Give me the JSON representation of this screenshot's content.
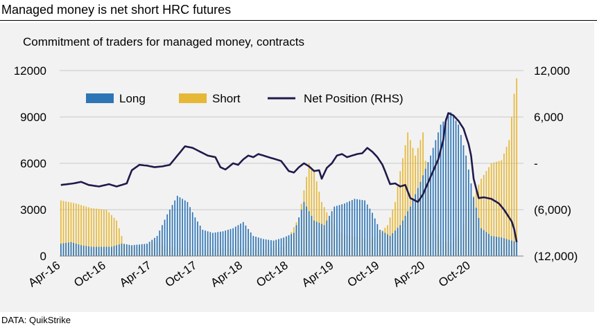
{
  "header": {
    "title": "Managed money is net short HRC futures",
    "source": "DATA: QuikStrike"
  },
  "chart_data": {
    "type": "bar",
    "subtitle": "Commitment of traders for managed money, contracts",
    "x_tick_labels": [
      "Apr-16",
      "Oct-16",
      "Apr-17",
      "Oct-17",
      "Apr-18",
      "Oct-18",
      "Apr-19",
      "Oct-19",
      "Apr-20",
      "Oct-20"
    ],
    "left_axis": {
      "ylim": [
        0,
        12000
      ],
      "tick_labels": [
        "0",
        "3000",
        "6000",
        "9000",
        "12000"
      ]
    },
    "right_axis": {
      "ylim": [
        -12000,
        12000
      ],
      "tick_labels": [
        "(12,000)",
        "(6,000)",
        "-",
        "6,000",
        "12,000"
      ]
    },
    "grid": true,
    "legend": {
      "placement": "top",
      "entries": [
        "Long",
        "Short",
        "Net Position (RHS)"
      ]
    },
    "colors": {
      "long": "#2e75b6",
      "short": "#e6b838",
      "net": "#1f1a4a",
      "grid": "#c8c8c8"
    },
    "series": [
      {
        "name": "Long",
        "axis": "left",
        "kind": "bar",
        "anchors": [
          [
            0,
            800
          ],
          [
            4,
            900
          ],
          [
            8,
            700
          ],
          [
            12,
            600
          ],
          [
            20,
            600
          ],
          [
            24,
            800
          ],
          [
            28,
            700
          ],
          [
            34,
            800
          ],
          [
            38,
            1300
          ],
          [
            42,
            2700
          ],
          [
            46,
            3900
          ],
          [
            50,
            3500
          ],
          [
            53,
            2500
          ],
          [
            56,
            1700
          ],
          [
            60,
            1500
          ],
          [
            64,
            1600
          ],
          [
            68,
            1800
          ],
          [
            72,
            2200
          ],
          [
            76,
            1300
          ],
          [
            80,
            1100
          ],
          [
            84,
            1000
          ],
          [
            88,
            1200
          ],
          [
            92,
            1500
          ],
          [
            96,
            3500
          ],
          [
            100,
            2300
          ],
          [
            104,
            2000
          ],
          [
            108,
            3200
          ],
          [
            112,
            3400
          ],
          [
            116,
            3700
          ],
          [
            120,
            3600
          ],
          [
            123,
            2800
          ],
          [
            126,
            1700
          ],
          [
            130,
            1300
          ],
          [
            134,
            2000
          ],
          [
            138,
            3200
          ],
          [
            142,
            4800
          ],
          [
            146,
            6500
          ],
          [
            150,
            8500
          ],
          [
            154,
            9300
          ],
          [
            157,
            8500
          ],
          [
            160,
            6500
          ],
          [
            163,
            3800
          ],
          [
            166,
            1800
          ],
          [
            170,
            1300
          ],
          [
            174,
            1200
          ],
          [
            178,
            1000
          ],
          [
            180,
            900
          ]
        ]
      },
      {
        "name": "Short",
        "axis": "left",
        "kind": "bar",
        "anchors": [
          [
            0,
            3600
          ],
          [
            6,
            3400
          ],
          [
            12,
            3100
          ],
          [
            18,
            3000
          ],
          [
            22,
            2300
          ],
          [
            25,
            800
          ],
          [
            30,
            600
          ],
          [
            38,
            900
          ],
          [
            42,
            600
          ],
          [
            48,
            500
          ],
          [
            56,
            400
          ],
          [
            64,
            500
          ],
          [
            72,
            500
          ],
          [
            80,
            400
          ],
          [
            88,
            600
          ],
          [
            94,
            2500
          ],
          [
            98,
            6000
          ],
          [
            100,
            5500
          ],
          [
            103,
            3500
          ],
          [
            106,
            2500
          ],
          [
            110,
            1500
          ],
          [
            114,
            1300
          ],
          [
            118,
            1200
          ],
          [
            122,
            1000
          ],
          [
            126,
            1500
          ],
          [
            129,
            2000
          ],
          [
            132,
            3500
          ],
          [
            134,
            5500
          ],
          [
            137,
            8000
          ],
          [
            140,
            6500
          ],
          [
            143,
            8000
          ],
          [
            146,
            2500
          ],
          [
            150,
            1000
          ],
          [
            154,
            800
          ],
          [
            158,
            1500
          ],
          [
            162,
            3500
          ],
          [
            166,
            5000
          ],
          [
            170,
            6000
          ],
          [
            174,
            6200
          ],
          [
            177,
            7500
          ],
          [
            179,
            10500
          ],
          [
            180,
            11500
          ]
        ]
      },
      {
        "name": "Net Position (RHS)",
        "axis": "right",
        "kind": "line",
        "anchors": [
          [
            0,
            -2800
          ],
          [
            5,
            -2600
          ],
          [
            8,
            -2400
          ],
          [
            11,
            -2800
          ],
          [
            15,
            -3000
          ],
          [
            19,
            -2700
          ],
          [
            22,
            -3000
          ],
          [
            26,
            -2600
          ],
          [
            28,
            -900
          ],
          [
            31,
            -200
          ],
          [
            34,
            -300
          ],
          [
            37,
            -500
          ],
          [
            40,
            -400
          ],
          [
            43,
            -200
          ],
          [
            46,
            1000
          ],
          [
            49,
            2200
          ],
          [
            52,
            2000
          ],
          [
            55,
            1500
          ],
          [
            58,
            1000
          ],
          [
            61,
            800
          ],
          [
            63,
            -500
          ],
          [
            65,
            -800
          ],
          [
            68,
            0
          ],
          [
            70,
            -200
          ],
          [
            72,
            500
          ],
          [
            74,
            1000
          ],
          [
            76,
            800
          ],
          [
            78,
            1200
          ],
          [
            80,
            1000
          ],
          [
            82,
            800
          ],
          [
            84,
            600
          ],
          [
            87,
            300
          ],
          [
            90,
            -1000
          ],
          [
            92,
            -1200
          ],
          [
            94,
            -500
          ],
          [
            96,
            0
          ],
          [
            98,
            -400
          ],
          [
            100,
            -1000
          ],
          [
            102,
            -900
          ],
          [
            103,
            -2000
          ],
          [
            105,
            -600
          ],
          [
            107,
            0
          ],
          [
            109,
            1000
          ],
          [
            111,
            1200
          ],
          [
            113,
            800
          ],
          [
            115,
            1000
          ],
          [
            117,
            1200
          ],
          [
            119,
            1300
          ],
          [
            121,
            2000
          ],
          [
            123,
            1500
          ],
          [
            125,
            800
          ],
          [
            127,
            -200
          ],
          [
            128,
            -1000
          ],
          [
            130,
            -2700
          ],
          [
            132,
            -2600
          ],
          [
            134,
            -3000
          ],
          [
            136,
            -2800
          ],
          [
            138,
            -4500
          ],
          [
            141,
            -5000
          ],
          [
            143,
            -4000
          ],
          [
            145,
            -2500
          ],
          [
            147,
            -1000
          ],
          [
            149,
            500
          ],
          [
            151,
            3000
          ],
          [
            152,
            5500
          ],
          [
            153,
            6500
          ],
          [
            155,
            6200
          ],
          [
            157,
            5500
          ],
          [
            159,
            4500
          ],
          [
            161,
            2500
          ],
          [
            162,
            1000
          ],
          [
            163,
            -2000
          ],
          [
            165,
            -4500
          ],
          [
            167,
            -4400
          ],
          [
            170,
            -4600
          ],
          [
            173,
            -5200
          ],
          [
            175,
            -6000
          ],
          [
            177,
            -7000
          ],
          [
            178,
            -7500
          ],
          [
            179,
            -8500
          ],
          [
            180,
            -10200
          ]
        ]
      }
    ]
  }
}
